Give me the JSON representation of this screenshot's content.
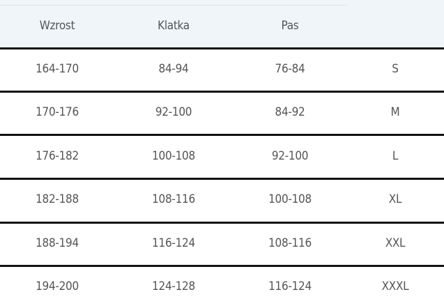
{
  "headers": [
    "Wzrost",
    "Klatka",
    "Pas",
    ""
  ],
  "rows": [
    [
      "164-170",
      "84-94",
      "76-84",
      "S"
    ],
    [
      "170-176",
      "92-100",
      "84-92",
      "M"
    ],
    [
      "176-182",
      "100-108",
      "92-100",
      "L"
    ],
    [
      "182-188",
      "108-116",
      "100-108",
      "XL"
    ],
    [
      "188-194",
      "116-124",
      "108-116",
      "XXL"
    ],
    [
      "194-200",
      "124-128",
      "116-124",
      "XXXL"
    ]
  ]
}
